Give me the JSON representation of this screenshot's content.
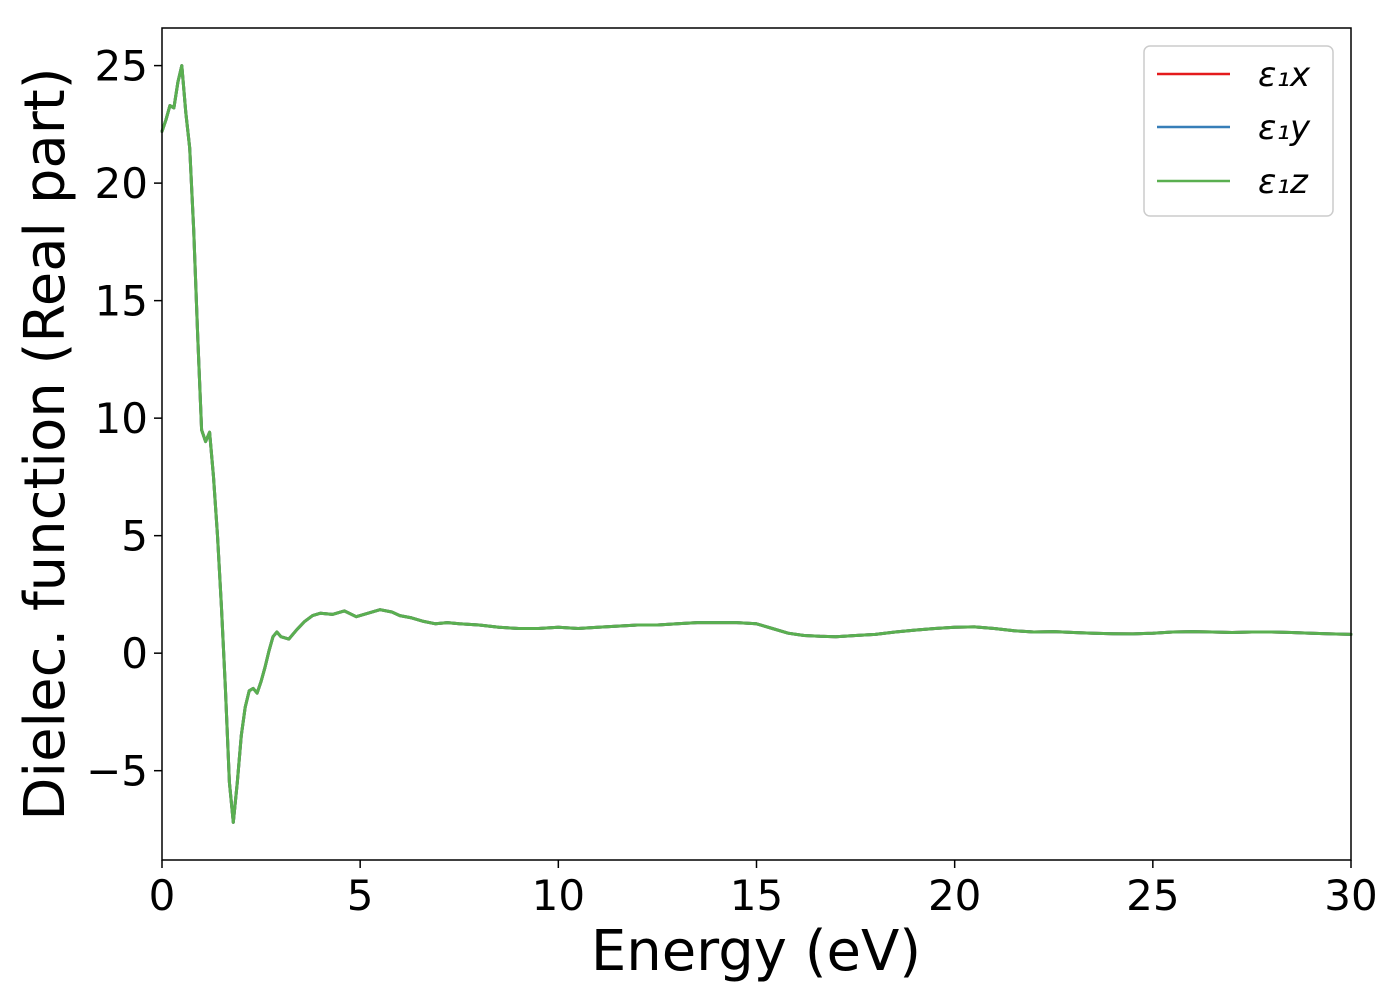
{
  "chart_data": {
    "type": "line",
    "title": "",
    "xlabel": "Energy (eV)",
    "ylabel": "Dielec. function (Real part)",
    "xlim": [
      0,
      30
    ],
    "ylim": [
      -8.8,
      26.6
    ],
    "xticks": [
      0,
      5,
      10,
      15,
      20,
      25,
      30
    ],
    "xtick_labels": [
      "0",
      "5",
      "10",
      "15",
      "20",
      "25",
      "30"
    ],
    "yticks": [
      -5,
      0,
      5,
      10,
      15,
      20,
      25
    ],
    "ytick_labels": [
      "−5",
      "0",
      "5",
      "10",
      "15",
      "20",
      "25"
    ],
    "grid": false,
    "legend_position": "top-right",
    "x": [
      0,
      0.1,
      0.2,
      0.3,
      0.4,
      0.5,
      0.6,
      0.7,
      0.8,
      0.9,
      1.0,
      1.1,
      1.2,
      1.3,
      1.4,
      1.5,
      1.6,
      1.7,
      1.8,
      1.9,
      2.0,
      2.1,
      2.2,
      2.3,
      2.4,
      2.5,
      2.6,
      2.7,
      2.8,
      2.9,
      3.0,
      3.2,
      3.4,
      3.6,
      3.8,
      4.0,
      4.3,
      4.6,
      4.9,
      5.2,
      5.5,
      5.8,
      6.0,
      6.3,
      6.6,
      6.9,
      7.2,
      7.5,
      8.0,
      8.5,
      9.0,
      9.5,
      10.0,
      10.5,
      11.0,
      11.5,
      12.0,
      12.5,
      13.0,
      13.5,
      14.0,
      14.5,
      15.0,
      15.4,
      15.8,
      16.2,
      16.6,
      17.0,
      17.5,
      18.0,
      18.5,
      19.0,
      19.5,
      20.0,
      20.5,
      21.0,
      21.5,
      22.0,
      22.5,
      23.0,
      23.5,
      24.0,
      24.5,
      25.0,
      25.5,
      26.0,
      26.5,
      27.0,
      27.5,
      28.0,
      28.5,
      29.0,
      29.5,
      30.0
    ],
    "series": [
      {
        "name": "ε₁x",
        "color": "#e41a1c",
        "values": [
          22.2,
          22.7,
          23.3,
          23.2,
          24.3,
          25.0,
          23.0,
          21.5,
          18.0,
          13.5,
          9.5,
          9.0,
          9.4,
          7.5,
          5.0,
          2.0,
          -1.5,
          -5.5,
          -7.2,
          -5.5,
          -3.5,
          -2.3,
          -1.6,
          -1.5,
          -1.7,
          -1.2,
          -0.6,
          0.1,
          0.7,
          0.9,
          0.7,
          0.6,
          1.0,
          1.35,
          1.6,
          1.7,
          1.65,
          1.8,
          1.55,
          1.7,
          1.85,
          1.75,
          1.6,
          1.5,
          1.35,
          1.25,
          1.3,
          1.25,
          1.2,
          1.1,
          1.05,
          1.05,
          1.1,
          1.05,
          1.1,
          1.15,
          1.2,
          1.2,
          1.25,
          1.3,
          1.3,
          1.3,
          1.25,
          1.05,
          0.85,
          0.75,
          0.72,
          0.7,
          0.75,
          0.8,
          0.9,
          0.98,
          1.05,
          1.1,
          1.12,
          1.05,
          0.95,
          0.9,
          0.92,
          0.88,
          0.85,
          0.83,
          0.82,
          0.85,
          0.9,
          0.92,
          0.9,
          0.88,
          0.9,
          0.9,
          0.88,
          0.85,
          0.82,
          0.8
        ]
      },
      {
        "name": "ε₁y",
        "color": "#377eb8",
        "values": [
          22.2,
          22.7,
          23.3,
          23.2,
          24.3,
          25.0,
          23.0,
          21.5,
          18.0,
          13.5,
          9.5,
          9.0,
          9.4,
          7.5,
          5.0,
          2.0,
          -1.5,
          -5.5,
          -7.2,
          -5.5,
          -3.5,
          -2.3,
          -1.6,
          -1.5,
          -1.7,
          -1.2,
          -0.6,
          0.1,
          0.7,
          0.9,
          0.7,
          0.6,
          1.0,
          1.35,
          1.6,
          1.7,
          1.65,
          1.8,
          1.55,
          1.7,
          1.85,
          1.75,
          1.6,
          1.5,
          1.35,
          1.25,
          1.3,
          1.25,
          1.2,
          1.1,
          1.05,
          1.05,
          1.1,
          1.05,
          1.1,
          1.15,
          1.2,
          1.2,
          1.25,
          1.3,
          1.3,
          1.3,
          1.25,
          1.05,
          0.85,
          0.75,
          0.72,
          0.7,
          0.75,
          0.8,
          0.9,
          0.98,
          1.05,
          1.1,
          1.12,
          1.05,
          0.95,
          0.9,
          0.92,
          0.88,
          0.85,
          0.83,
          0.82,
          0.85,
          0.9,
          0.92,
          0.9,
          0.88,
          0.9,
          0.9,
          0.88,
          0.85,
          0.82,
          0.8
        ]
      },
      {
        "name": "ε₁z",
        "color": "#5aaf50",
        "values": [
          22.2,
          22.7,
          23.3,
          23.2,
          24.3,
          25.0,
          23.0,
          21.5,
          18.0,
          13.5,
          9.5,
          9.0,
          9.4,
          7.5,
          5.0,
          2.0,
          -1.5,
          -5.5,
          -7.2,
          -5.5,
          -3.5,
          -2.3,
          -1.6,
          -1.5,
          -1.7,
          -1.2,
          -0.6,
          0.1,
          0.7,
          0.9,
          0.7,
          0.6,
          1.0,
          1.35,
          1.6,
          1.7,
          1.65,
          1.8,
          1.55,
          1.7,
          1.85,
          1.75,
          1.6,
          1.5,
          1.35,
          1.25,
          1.3,
          1.25,
          1.2,
          1.1,
          1.05,
          1.05,
          1.1,
          1.05,
          1.1,
          1.15,
          1.2,
          1.2,
          1.25,
          1.3,
          1.3,
          1.3,
          1.25,
          1.05,
          0.85,
          0.75,
          0.72,
          0.7,
          0.75,
          0.8,
          0.9,
          0.98,
          1.05,
          1.1,
          1.12,
          1.05,
          0.95,
          0.9,
          0.92,
          0.88,
          0.85,
          0.83,
          0.82,
          0.85,
          0.9,
          0.92,
          0.9,
          0.88,
          0.9,
          0.9,
          0.88,
          0.85,
          0.82,
          0.8
        ]
      }
    ]
  }
}
